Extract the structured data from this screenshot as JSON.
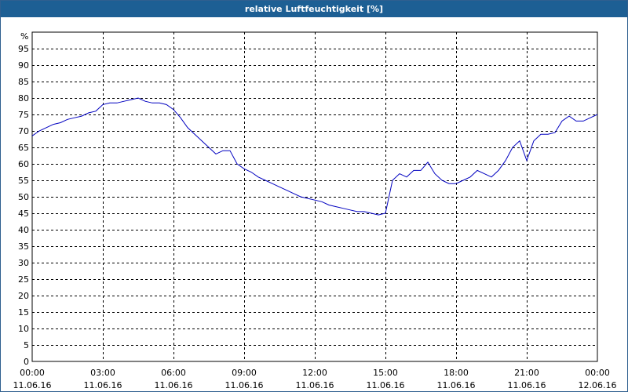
{
  "chart_data": {
    "type": "line",
    "title": "relative Luftfeuchtigkeit [%]",
    "ylabel": "%",
    "xlabel": "",
    "ylim": [
      0,
      100
    ],
    "xlim_hours": [
      0,
      24
    ],
    "grid": true,
    "line_color": "#0000c0",
    "y_ticks": [
      0,
      5,
      10,
      15,
      20,
      25,
      30,
      35,
      40,
      45,
      50,
      55,
      60,
      65,
      70,
      75,
      80,
      85,
      90,
      95
    ],
    "x_ticks": [
      {
        "time": "00:00",
        "date": "11.06.16",
        "hour": 0
      },
      {
        "time": "03:00",
        "date": "11.06.16",
        "hour": 3
      },
      {
        "time": "06:00",
        "date": "11.06.16",
        "hour": 6
      },
      {
        "time": "09:00",
        "date": "11.06.16",
        "hour": 9
      },
      {
        "time": "12:00",
        "date": "11.06.16",
        "hour": 12
      },
      {
        "time": "15:00",
        "date": "11.06.16",
        "hour": 15
      },
      {
        "time": "18:00",
        "date": "11.06.16",
        "hour": 18
      },
      {
        "time": "21:00",
        "date": "11.06.16",
        "hour": 21
      },
      {
        "time": "00:00",
        "date": "12.06.16",
        "hour": 24
      }
    ],
    "series": [
      {
        "x": [
          0.0,
          0.3,
          0.6,
          0.9,
          1.2,
          1.5,
          1.8,
          2.1,
          2.4,
          2.7,
          3.0,
          3.3,
          3.6,
          3.9,
          4.2,
          4.5,
          4.8,
          5.1,
          5.4,
          5.7,
          6.0,
          6.3,
          6.6,
          6.9,
          7.2,
          7.5,
          7.8,
          8.1,
          8.4,
          8.7,
          9.0,
          9.3,
          9.6,
          9.9,
          10.2,
          10.5,
          10.8,
          11.1,
          11.4,
          11.7,
          12.0,
          12.3,
          12.6,
          12.9,
          13.2,
          13.5,
          13.8,
          14.1,
          14.4,
          14.7,
          15.0,
          15.3,
          15.6,
          15.9,
          16.2,
          16.5,
          16.8,
          17.1,
          17.4,
          17.7,
          18.0,
          18.3,
          18.6,
          18.9,
          19.2,
          19.5,
          19.8,
          20.1,
          20.4,
          20.7,
          21.0,
          21.3,
          21.6,
          21.9,
          22.2,
          22.5,
          22.8,
          23.1,
          23.4,
          23.7,
          24.0
        ],
        "y": [
          68.5,
          70,
          71,
          72,
          72.5,
          73.5,
          74,
          74.5,
          75.5,
          76,
          78,
          78.5,
          78.5,
          79,
          79.5,
          80,
          79,
          78.5,
          78.5,
          78,
          76.5,
          74,
          71,
          69,
          67,
          65,
          63,
          64,
          64,
          60,
          58.5,
          57.5,
          56,
          55,
          54,
          53,
          52,
          51,
          50,
          49.5,
          49,
          48.5,
          47.5,
          47,
          46.5,
          46,
          45.5,
          45.5,
          45,
          44.5,
          45,
          55,
          57,
          56,
          58,
          58,
          60.5,
          57,
          55,
          54,
          54,
          55,
          56,
          58,
          57,
          56,
          58,
          61,
          65,
          67,
          61,
          67,
          69,
          69,
          69.5,
          73,
          74.5,
          73,
          73,
          74,
          75
        ]
      }
    ]
  }
}
